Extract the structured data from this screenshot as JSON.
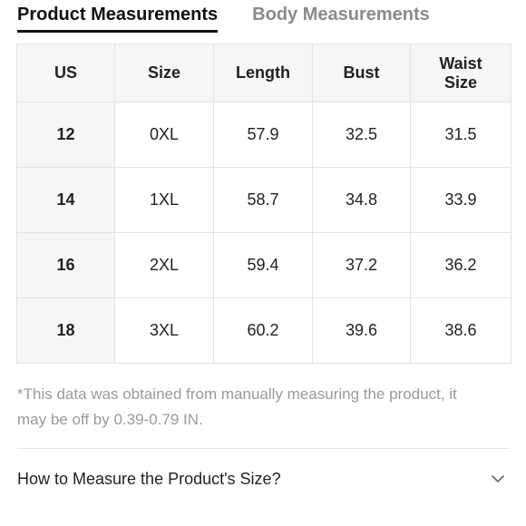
{
  "tabs": [
    {
      "label": "Product Measurements",
      "active": true
    },
    {
      "label": "Body Measurements",
      "active": false
    }
  ],
  "table": {
    "headers": [
      "US",
      "Size",
      "Length",
      "Bust",
      "Waist Size"
    ],
    "header_lines": {
      "waist": [
        "Waist",
        "Size"
      ]
    },
    "rows": [
      {
        "us": "12",
        "size": "0XL",
        "length": "57.9",
        "bust": "32.5",
        "waist": "31.5"
      },
      {
        "us": "14",
        "size": "1XL",
        "length": "58.7",
        "bust": "34.8",
        "waist": "33.9"
      },
      {
        "us": "16",
        "size": "2XL",
        "length": "59.4",
        "bust": "37.2",
        "waist": "36.2"
      },
      {
        "us": "18",
        "size": "3XL",
        "length": "60.2",
        "bust": "39.6",
        "waist": "38.6"
      }
    ]
  },
  "note": {
    "line1": "*This data was obtained from manually measuring the product, it",
    "line2": "may be off by 0.39-0.79 IN."
  },
  "how_to_measure": {
    "label": "How to Measure the Product's Size?",
    "icon": "chevron-down-icon"
  },
  "colors": {
    "active_tab": "#111111",
    "inactive_tab": "#8a8a8a",
    "header_bg": "#f6f6f6",
    "border": "#e3e3e3",
    "note_text": "#9a9a9a"
  }
}
